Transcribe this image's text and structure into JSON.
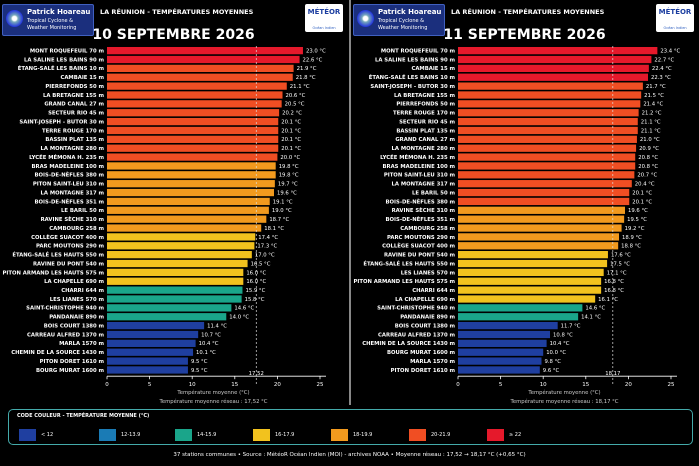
{
  "header": {
    "logo_name": "Patrick Hoareau",
    "logo_line1": "Tropical Cyclone &",
    "logo_line2": "Weather Monitoring",
    "title": "LA RÉUNION - TEMPÉRATURES MOYENNES",
    "meteor_logo": "MÉTÉOR",
    "meteor_logo_sub": "Océan Indien"
  },
  "colors": {
    "lt12": "#1f3fa0",
    "c12": "#1a7bb5",
    "c14": "#1aa58a",
    "c16": "#f2c21e",
    "c18": "#f29a1e",
    "c20": "#f04e23",
    "c22": "#e5192b"
  },
  "chart_data": [
    {
      "type": "bar",
      "orientation": "horizontal",
      "title": "10 SEPTEMBRE 2026",
      "xlabel": "Température moyenne (°C)",
      "xlim": [
        0,
        25
      ],
      "xticks": [
        0,
        5,
        10,
        15,
        20,
        25
      ],
      "mean_marker": 17.52,
      "mean_label": "17,52",
      "network_mean_text": "Température moyenne réseau : 17,52 °C",
      "categories": [
        "MONT ROQUEFEUIL 70 m",
        "LA SALINE LES BAINS 90 m",
        "ÉTANG-SALÉ LES BAINS 10 m",
        "CAMBAIE 15 m",
        "PIERREFONDS 50 m",
        "LA BRETAGNE 155 m",
        "GRAND CANAL 27 m",
        "SECTEUR RIO 45 m",
        "SAINT-JOSEPH - BUTOR 30 m",
        "TERRE ROUGE 170 m",
        "BASSIN PLAT 135 m",
        "LA MONTAGNE 280 m",
        "LYCÉE MÉMONA H. 235 m",
        "BRAS MADELEINE 100 m",
        "BOIS-DE-NÈFLES 380 m",
        "PITON SAINT-LEU 310 m",
        "LA MONTAGNE 317 m",
        "BOIS-DE-NÈFLES 351 m",
        "LE BARIL 50 m",
        "RAVINE SÈCHE 310 m",
        "CAMBOURG 258 m",
        "COLLÈGE SUACOT 400 m",
        "PARC MOUTONS 290 m",
        "ÉTANG-SALÉ LES HAUTS 550 m",
        "RAVINE DU PONT 540 m",
        "PITON ARMAND LES HAUTS 575 m",
        "LA CHAPELLE 690 m",
        "CHARRI 644 m",
        "LES LIANES 570 m",
        "SAINT-CHRISTOPHE 940 m",
        "PANDANAIE 890 m",
        "BOIS COURT 1380 m",
        "CARREAU ALFRED 1370 m",
        "MARLA 1570 m",
        "CHEMIN DE LA SOURCE 1430 m",
        "PITON DORET 1610 m",
        "BOURG MURAT 1600 m"
      ],
      "values": [
        23.0,
        22.6,
        21.9,
        21.8,
        21.1,
        20.6,
        20.5,
        20.2,
        20.1,
        20.1,
        20.1,
        20.1,
        20.0,
        19.8,
        19.8,
        19.7,
        19.6,
        19.1,
        19.0,
        18.7,
        18.1,
        17.4,
        17.3,
        17.0,
        16.5,
        16.0,
        16.0,
        15.9,
        15.8,
        14.6,
        14.0,
        11.4,
        10.7,
        10.4,
        10.1,
        9.5,
        9.5
      ],
      "value_labels": [
        "23.0 °C",
        "22.6 °C",
        "21.9 °C",
        "21.8 °C",
        "21.1 °C",
        "20.6 °C",
        "20.5 °C",
        "20.2 °C",
        "20.1 °C",
        "20.1 °C",
        "20.1 °C",
        "20.1 °C",
        "20.0 °C",
        "19.8 °C",
        "19.8 °C",
        "19.7 °C",
        "19.6 °C",
        "19.1 °C",
        "19.0 °C",
        "18.7 °C",
        "18.1 °C",
        "17.4 °C",
        "17.3 °C",
        "17.0 °C",
        "16.5 °C",
        "16.0 °C",
        "16.0 °C",
        "15.9 °C",
        "15.8 °C",
        "14.6 °C",
        "14.0 °C",
        "11.4 °C",
        "10.7 °C",
        "10.4 °C",
        "10.1 °C",
        "9.5 °C",
        "9.5 °C"
      ]
    },
    {
      "type": "bar",
      "orientation": "horizontal",
      "title": "11 SEPTEMBRE 2026",
      "xlabel": "Température moyenne (°C)",
      "xlim": [
        0,
        25
      ],
      "xticks": [
        0,
        5,
        10,
        15,
        20,
        25
      ],
      "mean_marker": 18.17,
      "mean_label": "18,17",
      "network_mean_text": "Température moyenne réseau : 18,17 °C",
      "categories": [
        "MONT ROQUEFEUIL 70 m",
        "LA SALINE LES BAINS 90 m",
        "CAMBAIE 15 m",
        "ÉTANG-SALÉ LES BAINS 10 m",
        "SAINT-JOSEPH - BUTOR 30 m",
        "LA BRETAGNE 155 m",
        "PIERREFONDS 50 m",
        "TERRE ROUGE 170 m",
        "SECTEUR RIO 45 m",
        "BASSIN PLAT 135 m",
        "GRAND CANAL 27 m",
        "LA MONTAGNE 280 m",
        "LYCÉE MÉMONA H. 235 m",
        "BRAS MADELEINE 100 m",
        "PITON SAINT-LEU 310 m",
        "LA MONTAGNE 317 m",
        "LE BARIL 50 m",
        "BOIS-DE-NÈFLES 380 m",
        "RAVINE SÈCHE 310 m",
        "BOIS-DE-NÈFLES 351 m",
        "CAMBOURG 258 m",
        "PARC MOUTONS 290 m",
        "COLLÈGE SUACOT 400 m",
        "RAVINE DU PONT 540 m",
        "ÉTANG-SALÉ LES HAUTS 550 m",
        "LES LIANES 570 m",
        "PITON ARMAND LES HAUTS 575 m",
        "CHARRI 644 m",
        "LA CHAPELLE 690 m",
        "SAINT-CHRISTOPHE 940 m",
        "PANDANAIE 890 m",
        "BOIS COURT 1380 m",
        "CARREAU ALFRED 1370 m",
        "CHEMIN DE LA SOURCE 1430 m",
        "BOURG MURAT 1600 m",
        "MARLA 1570 m",
        "PITON DORET 1610 m"
      ],
      "values": [
        23.4,
        22.7,
        22.4,
        22.3,
        21.7,
        21.5,
        21.4,
        21.2,
        21.1,
        21.1,
        21.0,
        20.9,
        20.8,
        20.8,
        20.7,
        20.4,
        20.1,
        20.1,
        19.6,
        19.5,
        19.2,
        18.9,
        18.8,
        17.6,
        17.5,
        17.1,
        16.8,
        16.8,
        16.1,
        14.6,
        14.1,
        11.7,
        10.8,
        10.4,
        10.0,
        9.8,
        9.6
      ],
      "value_labels": [
        "23.4 °C",
        "22.7 °C",
        "22.4 °C",
        "22.3 °C",
        "21.7 °C",
        "21.5 °C",
        "21.4 °C",
        "21.2 °C",
        "21.1 °C",
        "21.1 °C",
        "21.0 °C",
        "20.9 °C",
        "20.8 °C",
        "20.8 °C",
        "20.7 °C",
        "20.4 °C",
        "20.1 °C",
        "20.1 °C",
        "19.6 °C",
        "19.5 °C",
        "19.2 °C",
        "18.9 °C",
        "18.8 °C",
        "17.6 °C",
        "17.5 °C",
        "17.1 °C",
        "16.8 °C",
        "16.8 °C",
        "16.1 °C",
        "14.6 °C",
        "14.1 °C",
        "11.7 °C",
        "10.8 °C",
        "10.4 °C",
        "10.0 °C",
        "9.8 °C",
        "9.6 °C"
      ]
    }
  ],
  "legend": {
    "title": "CODE COULEUR - TEMPÉRATURE MOYENNE (°C)",
    "items": [
      {
        "label": "< 12",
        "color": "#1f3fa0"
      },
      {
        "label": "12-13.9",
        "color": "#1a7bb5"
      },
      {
        "label": "14-15.9",
        "color": "#1aa58a"
      },
      {
        "label": "16-17.9",
        "color": "#f2c21e"
      },
      {
        "label": "18-19.9",
        "color": "#f29a1e"
      },
      {
        "label": "20-21.9",
        "color": "#f04e23"
      },
      {
        "label": "≥ 22",
        "color": "#e5192b"
      }
    ]
  },
  "footer": {
    "text": "37 stations communes  •  Source : MétéoR Océan Indien (MOI) - archives NOAA  •  Moyenne réseau : 17,52 → 18,17 °C (+0,65 °C)"
  }
}
